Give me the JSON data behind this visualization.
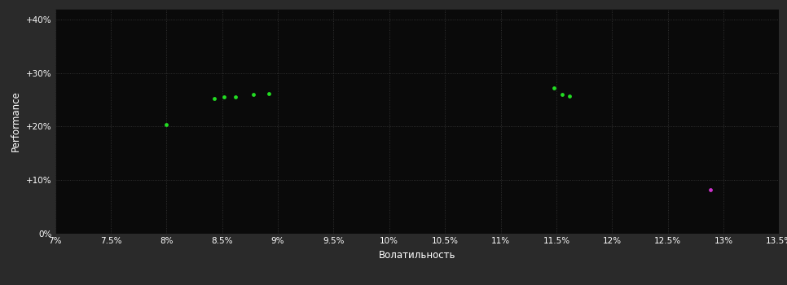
{
  "background_color": "#2a2a2a",
  "plot_bg_color": "#0a0a0a",
  "grid_color": "#3a3a3a",
  "text_color": "#ffffff",
  "xlabel": "Волатильность",
  "ylabel": "Performance",
  "xlim": [
    0.07,
    0.135
  ],
  "ylim": [
    0.0,
    0.42
  ],
  "xticks": [
    0.07,
    0.075,
    0.08,
    0.085,
    0.09,
    0.095,
    0.1,
    0.105,
    0.11,
    0.115,
    0.12,
    0.125,
    0.13,
    0.135
  ],
  "yticks": [
    0.0,
    0.1,
    0.2,
    0.3,
    0.4
  ],
  "ytick_labels": [
    "0%",
    "+10%",
    "+20%",
    "+30%",
    "+40%"
  ],
  "xtick_labels": [
    "7%",
    "7.5%",
    "8%",
    "8.5%",
    "9%",
    "9.5%",
    "10%",
    "10.5%",
    "11%",
    "11.5%",
    "12%",
    "12.5%",
    "13%",
    "13.5%"
  ],
  "green_points": [
    [
      0.08,
      0.204
    ],
    [
      0.0843,
      0.252
    ],
    [
      0.0852,
      0.255
    ],
    [
      0.0862,
      0.255
    ],
    [
      0.0878,
      0.259
    ],
    [
      0.0892,
      0.261
    ],
    [
      0.1148,
      0.272
    ],
    [
      0.1155,
      0.26
    ],
    [
      0.1162,
      0.257
    ]
  ],
  "magenta_points": [
    [
      0.1288,
      0.082
    ]
  ],
  "green_color": "#22dd22",
  "magenta_color": "#cc33cc",
  "point_size": 12,
  "figsize": [
    9.66,
    3.5
  ],
  "dpi": 100
}
